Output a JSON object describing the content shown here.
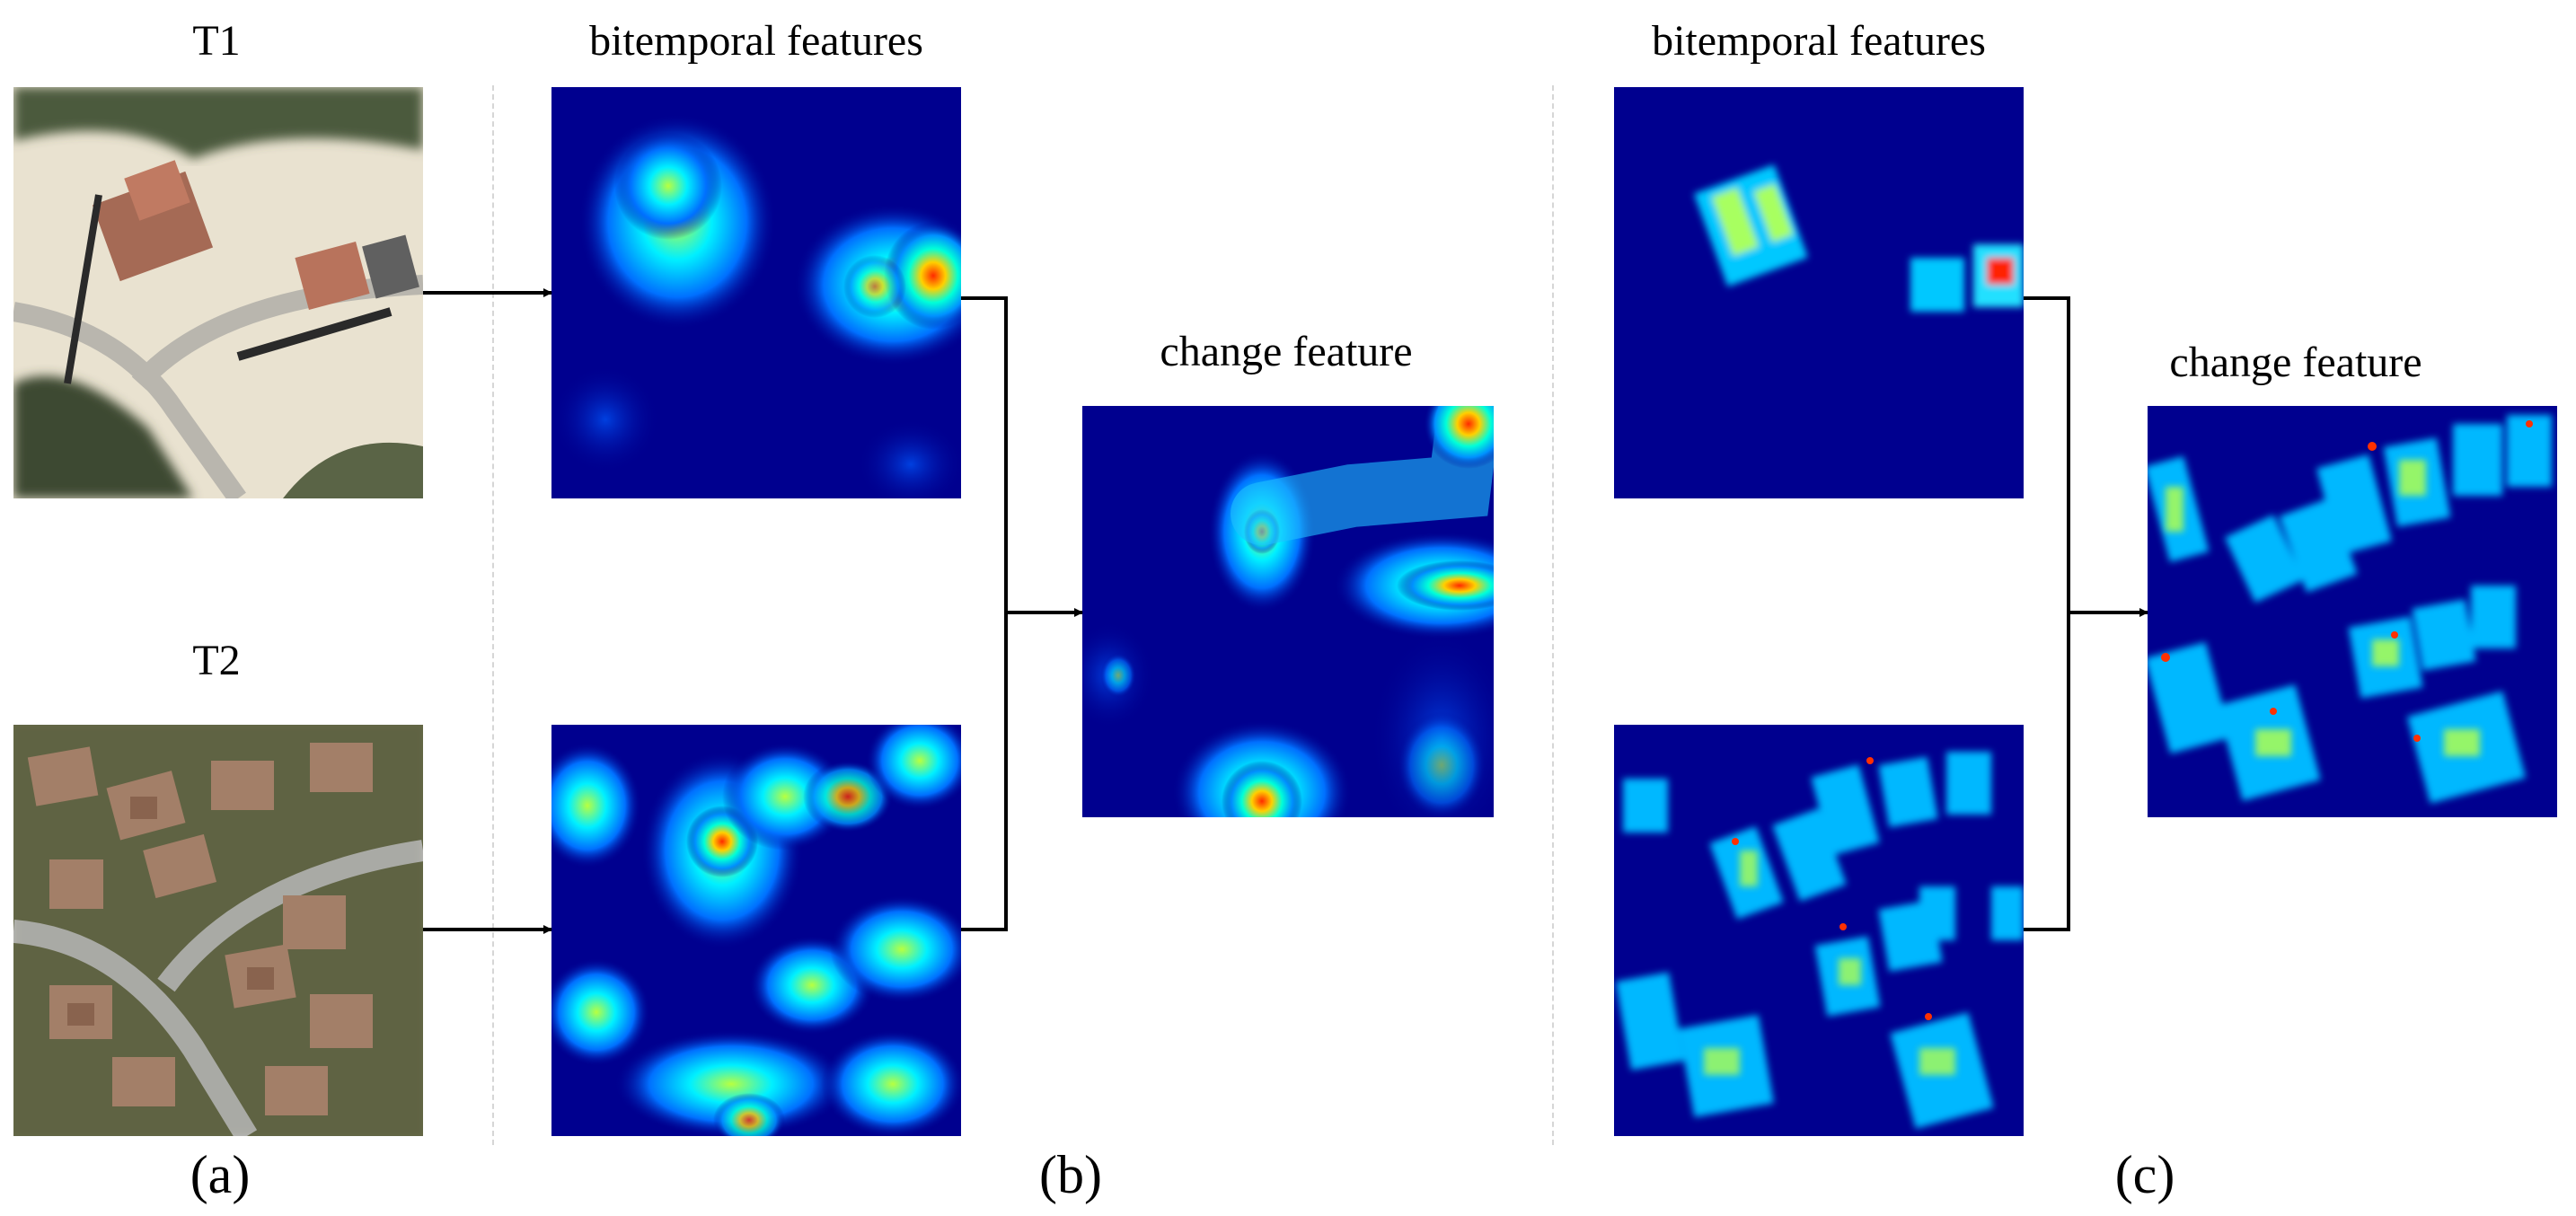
{
  "panel_a": {
    "t1_label": "T1",
    "t2_label": "T2",
    "caption": "(a)"
  },
  "panel_b": {
    "bitemporal_label": "bitemporal features",
    "change_label": "change feature",
    "caption": "(b)"
  },
  "panel_c": {
    "bitemporal_label": "bitemporal features",
    "change_label": "change feature",
    "caption": "(c)"
  },
  "colors": {
    "heatmap_low": "#00008f",
    "heatmap_mid": "#00e5ff",
    "heatmap_high": "#c80000",
    "arrow": "#000000",
    "separator": "#d6d6d6"
  }
}
